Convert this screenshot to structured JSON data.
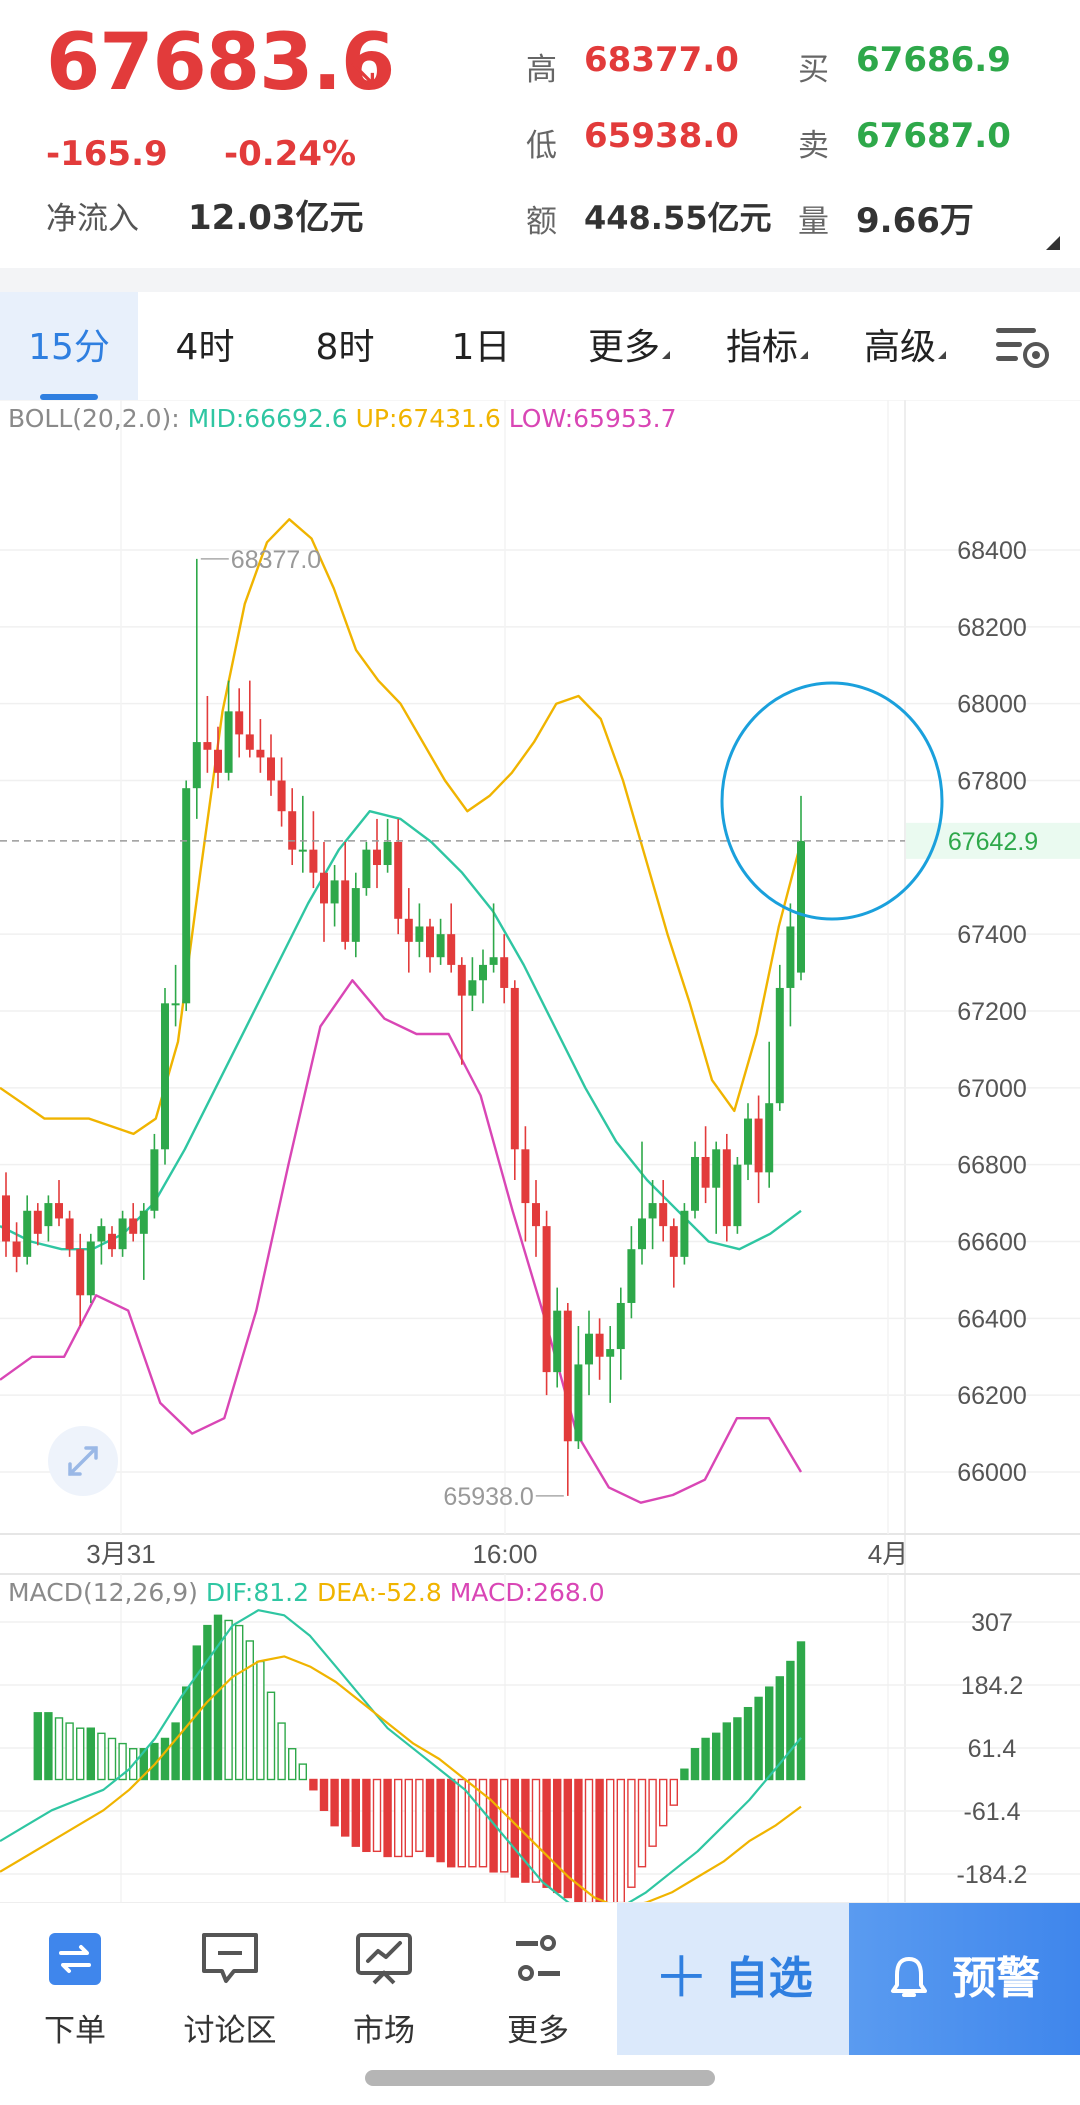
{
  "quote": {
    "last_price": "67683.6",
    "change": "-165.9",
    "change_pct": "-0.24%",
    "net_inflow_label": "净流入",
    "net_inflow_value": "12.03亿元",
    "high_label": "高",
    "high_value": "68377.0",
    "low_label": "低",
    "low_value": "65938.0",
    "amount_label": "额",
    "amount_value": "448.55亿元",
    "bid_label": "买",
    "bid_value": "67686.9",
    "ask_label": "卖",
    "ask_value": "67687.0",
    "volume_label": "量",
    "volume_value": "9.66万",
    "trend_icon": "down-right-arrow-icon"
  },
  "tabs": [
    {
      "label": "15分",
      "active": true
    },
    {
      "label": "4时"
    },
    {
      "label": "8时"
    },
    {
      "label": "1日"
    },
    {
      "label": "更多",
      "dropdown": true
    },
    {
      "label": "指标",
      "dropdown": true
    },
    {
      "label": "高级",
      "dropdown": true
    }
  ],
  "settings_icon": "chart-settings-icon",
  "boll_legend": {
    "name": "BOLL(20,2.0):",
    "mid": "MID:66692.6",
    "up": "UP:67431.6",
    "low": "LOW:65953.7"
  },
  "macd_legend": {
    "name": "MACD(12,26,9)",
    "dif": "DIF:81.2",
    "dea": "DEA:-52.8",
    "macd": "MACD:268.0"
  },
  "colors": {
    "up": "#2ea84a",
    "down": "#e23b3b",
    "accent": "#2f7fe0",
    "boll_mid": "#2fc6a2",
    "boll_up": "#f0b400",
    "boll_low": "#d946b5",
    "highlight_circle": "#1aa0dc"
  },
  "chart_data": [
    {
      "type": "candlestick",
      "title": "BOLL(20,2.0)",
      "yticks": [
        66000,
        66200,
        66400,
        66600,
        66800,
        67000,
        67200,
        67400,
        67800,
        68000,
        68200,
        68400
      ],
      "ylim": [
        65860,
        68520
      ],
      "xticks": [
        "3月31",
        "16:00",
        "4月"
      ],
      "high_marker": "68377.0",
      "low_marker": "65938.0",
      "current_price_label": "67642.9",
      "candles": [
        [
          66720,
          66780,
          66560,
          66600
        ],
        [
          66600,
          66650,
          66520,
          66560
        ],
        [
          66560,
          66720,
          66540,
          66680
        ],
        [
          66680,
          66700,
          66590,
          66620
        ],
        [
          66640,
          66720,
          66600,
          66700
        ],
        [
          66700,
          66760,
          66640,
          66660
        ],
        [
          66660,
          66680,
          66560,
          66580
        ],
        [
          66580,
          66620,
          66380,
          66460
        ],
        [
          66460,
          66620,
          66440,
          66600
        ],
        [
          66600,
          66660,
          66540,
          66640
        ],
        [
          66620,
          66640,
          66560,
          66580
        ],
        [
          66580,
          66680,
          66560,
          66660
        ],
        [
          66660,
          66700,
          66600,
          66620
        ],
        [
          66620,
          66700,
          66500,
          66680
        ],
        [
          66680,
          66880,
          66660,
          66840
        ],
        [
          66840,
          67260,
          66800,
          67220
        ],
        [
          67220,
          67320,
          67160,
          67220
        ],
        [
          67220,
          67800,
          67200,
          67780
        ],
        [
          67780,
          68377,
          67700,
          67900
        ],
        [
          67900,
          68020,
          67820,
          67880
        ],
        [
          67880,
          67940,
          67780,
          67820
        ],
        [
          67820,
          68060,
          67800,
          67980
        ],
        [
          67980,
          68040,
          67860,
          67920
        ],
        [
          67920,
          68060,
          67860,
          67880
        ],
        [
          67880,
          67960,
          67820,
          67860
        ],
        [
          67860,
          67920,
          67760,
          67800
        ],
        [
          67800,
          67860,
          67680,
          67720
        ],
        [
          67720,
          67780,
          67580,
          67620
        ],
        [
          67620,
          67760,
          67560,
          67620
        ],
        [
          67620,
          67720,
          67520,
          67560
        ],
        [
          67560,
          67640,
          67380,
          67480
        ],
        [
          67480,
          67580,
          67420,
          67540
        ],
        [
          67540,
          67640,
          67360,
          67380
        ],
        [
          67380,
          67560,
          67340,
          67520
        ],
        [
          67520,
          67640,
          67500,
          67620
        ],
        [
          67620,
          67700,
          67520,
          67580
        ],
        [
          67580,
          67700,
          67560,
          67640
        ],
        [
          67640,
          67700,
          67400,
          67440
        ],
        [
          67440,
          67520,
          67300,
          67380
        ],
        [
          67380,
          67480,
          67340,
          67420
        ],
        [
          67420,
          67440,
          67300,
          67340
        ],
        [
          67340,
          67440,
          67320,
          67400
        ],
        [
          67400,
          67480,
          67300,
          67320
        ],
        [
          67320,
          67340,
          67060,
          67240
        ],
        [
          67240,
          67340,
          67200,
          67280
        ],
        [
          67280,
          67360,
          67220,
          67320
        ],
        [
          67320,
          67480,
          67300,
          67340
        ],
        [
          67340,
          67400,
          67220,
          67260
        ],
        [
          67260,
          67280,
          66760,
          66840
        ],
        [
          66840,
          66900,
          66600,
          66700
        ],
        [
          66700,
          66760,
          66560,
          66640
        ],
        [
          66640,
          66680,
          66200,
          66260
        ],
        [
          66260,
          66480,
          66220,
          66420
        ],
        [
          66420,
          66440,
          65938,
          66080
        ],
        [
          66080,
          66380,
          66060,
          66280
        ],
        [
          66280,
          66420,
          66200,
          66360
        ],
        [
          66360,
          66400,
          66240,
          66300
        ],
        [
          66300,
          66380,
          66180,
          66320
        ],
        [
          66320,
          66480,
          66240,
          66440
        ],
        [
          66440,
          66640,
          66400,
          66580
        ],
        [
          66580,
          66860,
          66540,
          66660
        ],
        [
          66660,
          66760,
          66580,
          66700
        ],
        [
          66700,
          66760,
          66600,
          66640
        ],
        [
          66640,
          66660,
          66480,
          66560
        ],
        [
          66560,
          66700,
          66540,
          66680
        ],
        [
          66680,
          66860,
          66660,
          66820
        ],
        [
          66820,
          66900,
          66700,
          66740
        ],
        [
          66740,
          66860,
          66620,
          66840
        ],
        [
          66840,
          66880,
          66600,
          66640
        ],
        [
          66640,
          66820,
          66620,
          66800
        ],
        [
          66800,
          66960,
          66760,
          66920
        ],
        [
          66920,
          66980,
          66700,
          66780
        ],
        [
          66780,
          67120,
          66740,
          66960
        ],
        [
          66960,
          67320,
          66940,
          67260
        ],
        [
          67260,
          67480,
          67160,
          67420
        ],
        [
          67300,
          67760,
          67280,
          67642.9
        ]
      ],
      "boll_up": [
        67000,
        66960,
        66920,
        66920,
        66920,
        66900,
        66880,
        66920,
        67120,
        67560,
        67980,
        68260,
        68420,
        68480,
        68430,
        68300,
        68140,
        68060,
        68000,
        67900,
        67800,
        67720,
        67760,
        67820,
        67900,
        68000,
        68020,
        67960,
        67800,
        67600,
        67400,
        67220,
        67020,
        66940,
        67140,
        67420,
        67640
      ],
      "boll_mid": [
        66640,
        66600,
        66580,
        66580,
        66620,
        66700,
        66840,
        67000,
        67160,
        67320,
        67480,
        67620,
        67720,
        67700,
        67640,
        67560,
        67460,
        67320,
        67160,
        67000,
        66860,
        66760,
        66680,
        66600,
        66580,
        66620,
        66680
      ],
      "boll_low": [
        66240,
        66300,
        66300,
        66460,
        66420,
        66180,
        66100,
        66140,
        66420,
        66800,
        67160,
        67280,
        67180,
        67140,
        67140,
        66980,
        66680,
        66400,
        66100,
        65960,
        65920,
        65940,
        65980,
        66140,
        66140,
        66000
      ]
    },
    {
      "type": "bar",
      "title": "MACD(12,26,9)",
      "yticks": [
        307,
        184.2,
        61.4,
        -61.4,
        -184.2
      ],
      "ylim": [
        -245,
        360
      ],
      "histogram": [
        130,
        130,
        120,
        110,
        100,
        100,
        90,
        80,
        70,
        60,
        60,
        70,
        80,
        110,
        180,
        260,
        300,
        320,
        310,
        300,
        270,
        230,
        170,
        110,
        60,
        30,
        -20,
        -60,
        -90,
        -110,
        -130,
        -140,
        -140,
        -150,
        -150,
        -150,
        -140,
        -150,
        -160,
        -170,
        -170,
        -170,
        -170,
        -180,
        -180,
        -190,
        -200,
        -200,
        -210,
        -220,
        -230,
        -240,
        -240,
        -250,
        -250,
        -240,
        -210,
        -170,
        -130,
        -90,
        -50,
        20,
        60,
        80,
        90,
        110,
        120,
        140,
        160,
        180,
        200,
        230,
        268
      ],
      "dif": [
        -120,
        -90,
        -60,
        -40,
        -20,
        20,
        80,
        160,
        230,
        300,
        330,
        320,
        280,
        220,
        160,
        100,
        60,
        20,
        -20,
        -80,
        -140,
        -200,
        -240,
        -260,
        -250,
        -220,
        -180,
        -140,
        -90,
        -40,
        20,
        81.2
      ],
      "dea": [
        -180,
        -150,
        -120,
        -90,
        -60,
        -20,
        30,
        90,
        150,
        200,
        230,
        240,
        220,
        190,
        150,
        110,
        70,
        40,
        0,
        -40,
        -90,
        -140,
        -190,
        -230,
        -250,
        -240,
        -220,
        -190,
        -160,
        -120,
        -90,
        -52.8
      ]
    }
  ],
  "bottom_nav": [
    {
      "label": "下单",
      "icon": "order-icon"
    },
    {
      "label": "讨论区",
      "icon": "chat-icon"
    },
    {
      "label": "市场",
      "icon": "market-chart-icon"
    },
    {
      "label": "更多",
      "icon": "more-sliders-icon"
    }
  ],
  "watchlist_button": "自选",
  "alert_button": "预警",
  "expand_icon": "expand-icon"
}
